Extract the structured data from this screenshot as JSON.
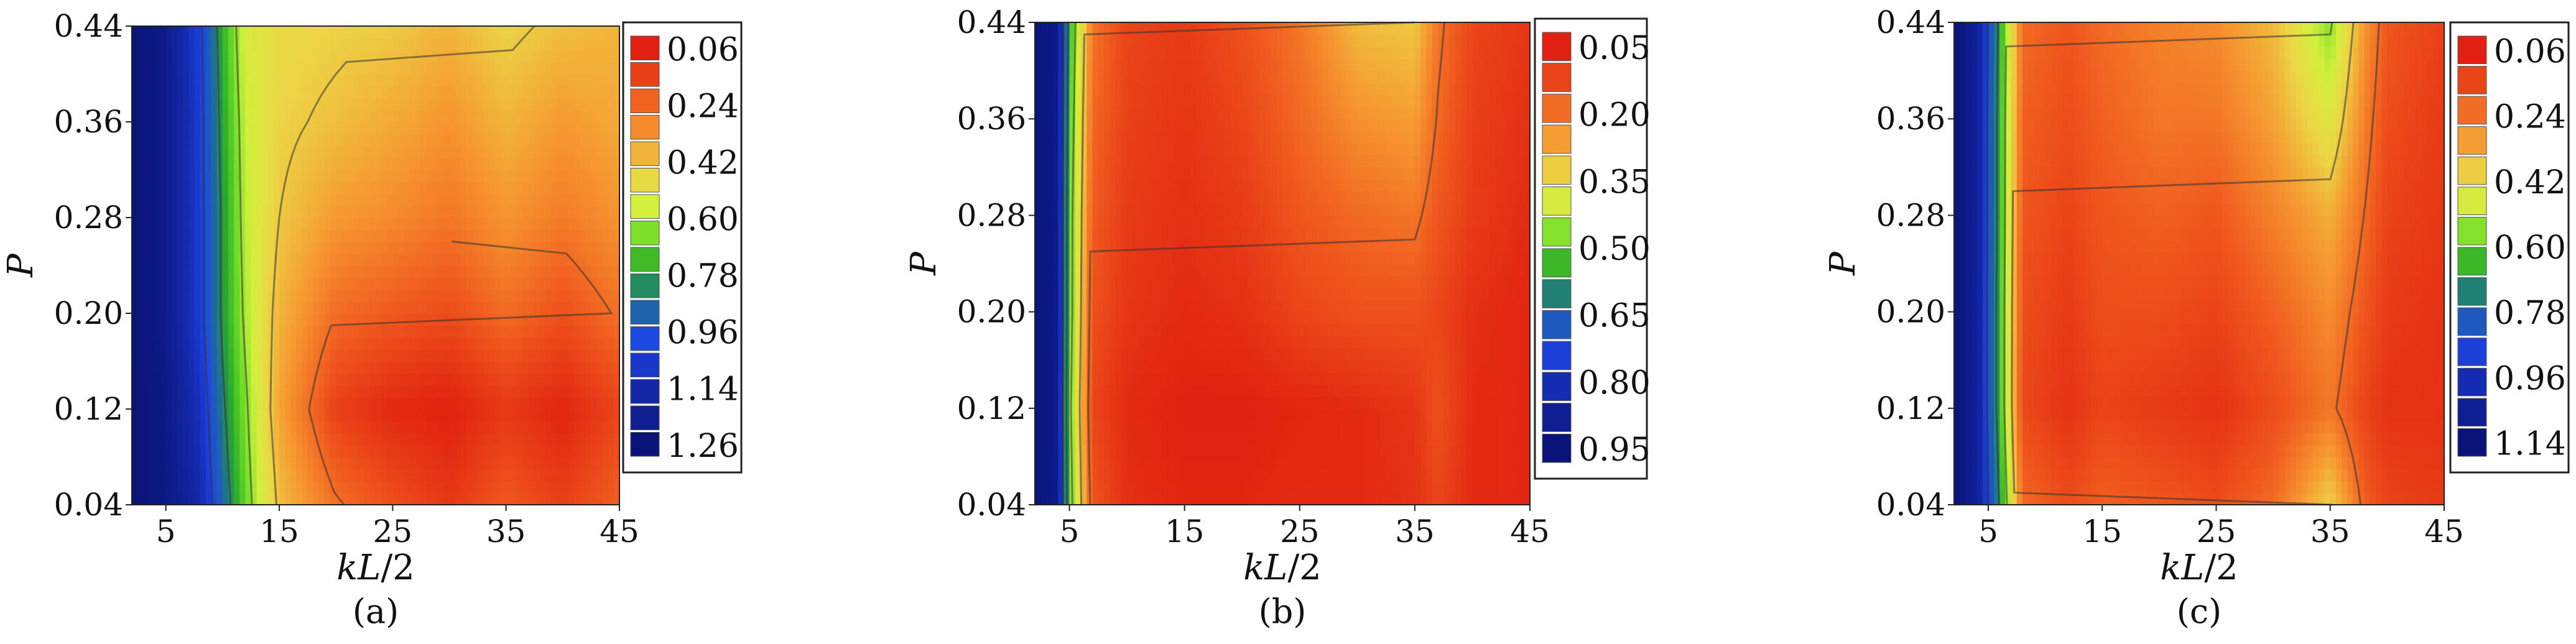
{
  "chart_data": [
    {
      "type": "heatmap",
      "caption": "(a)",
      "xlabel": "kL/2",
      "ylabel": "P",
      "xlim": [
        2,
        45
      ],
      "ylim": [
        0.04,
        0.44
      ],
      "xticks": [
        "5",
        "15",
        "25",
        "35",
        "45"
      ],
      "yticks": [
        "0.04",
        "0.12",
        "0.20",
        "0.28",
        "0.36",
        "0.44"
      ],
      "legend": [
        "0.06",
        "0.24",
        "0.42",
        "0.60",
        "0.78",
        "0.96",
        "1.14",
        "1.26"
      ],
      "value_range": [
        0.06,
        1.26
      ],
      "colors": {
        "high": "#0a1a8a",
        "low": "#e02010"
      },
      "x": [
        2,
        5,
        8,
        10,
        12,
        15,
        20,
        25,
        30,
        35,
        40,
        45
      ],
      "y": [
        0.04,
        0.12,
        0.2,
        0.28,
        0.36,
        0.44
      ],
      "z": [
        [
          1.26,
          1.22,
          1.1,
          0.85,
          0.65,
          0.4,
          0.25,
          0.18,
          0.12,
          0.2,
          0.14,
          0.22
        ],
        [
          1.26,
          1.22,
          1.05,
          0.8,
          0.62,
          0.35,
          0.14,
          0.08,
          0.06,
          0.12,
          0.07,
          0.15
        ],
        [
          1.26,
          1.2,
          1.0,
          0.76,
          0.58,
          0.38,
          0.24,
          0.2,
          0.17,
          0.24,
          0.18,
          0.25
        ],
        [
          1.26,
          1.2,
          1.0,
          0.76,
          0.56,
          0.42,
          0.33,
          0.3,
          0.26,
          0.32,
          0.27,
          0.32
        ],
        [
          1.26,
          1.2,
          1.0,
          0.74,
          0.55,
          0.44,
          0.4,
          0.36,
          0.32,
          0.38,
          0.33,
          0.36
        ],
        [
          1.26,
          1.2,
          0.98,
          0.72,
          0.52,
          0.46,
          0.44,
          0.42,
          0.38,
          0.44,
          0.4,
          0.38
        ]
      ]
    },
    {
      "type": "heatmap",
      "caption": "(b)",
      "xlabel": "kL/2",
      "ylabel": "P",
      "xlim": [
        2,
        45
      ],
      "ylim": [
        0.04,
        0.44
      ],
      "xticks": [
        "5",
        "15",
        "25",
        "35",
        "45"
      ],
      "yticks": [
        "0.04",
        "0.12",
        "0.20",
        "0.28",
        "0.36",
        "0.44"
      ],
      "legend": [
        "0.05",
        "0.20",
        "0.35",
        "0.50",
        "0.65",
        "0.80",
        "0.95"
      ],
      "value_range": [
        0.05,
        0.95
      ],
      "colors": {
        "high": "#0a1a8a",
        "low": "#e02010"
      },
      "x": [
        2,
        4,
        5,
        7,
        10,
        15,
        20,
        25,
        30,
        35,
        37,
        40,
        45
      ],
      "y": [
        0.04,
        0.12,
        0.2,
        0.28,
        0.36,
        0.44
      ],
      "z": [
        [
          0.95,
          0.9,
          0.5,
          0.15,
          0.08,
          0.06,
          0.06,
          0.07,
          0.07,
          0.08,
          0.12,
          0.07,
          0.06
        ],
        [
          0.95,
          0.9,
          0.48,
          0.12,
          0.07,
          0.05,
          0.05,
          0.06,
          0.07,
          0.09,
          0.14,
          0.07,
          0.06
        ],
        [
          0.95,
          0.9,
          0.5,
          0.14,
          0.09,
          0.07,
          0.08,
          0.12,
          0.14,
          0.14,
          0.12,
          0.08,
          0.06
        ],
        [
          0.95,
          0.9,
          0.5,
          0.16,
          0.1,
          0.08,
          0.1,
          0.15,
          0.18,
          0.2,
          0.15,
          0.1,
          0.07
        ],
        [
          0.95,
          0.9,
          0.52,
          0.18,
          0.11,
          0.09,
          0.12,
          0.18,
          0.24,
          0.26,
          0.18,
          0.11,
          0.08
        ],
        [
          0.95,
          0.9,
          0.55,
          0.2,
          0.12,
          0.1,
          0.14,
          0.2,
          0.3,
          0.32,
          0.2,
          0.12,
          0.09
        ]
      ]
    },
    {
      "type": "heatmap",
      "caption": "(c)",
      "xlabel": "kL/2",
      "ylabel": "P",
      "xlim": [
        2,
        45
      ],
      "ylim": [
        0.04,
        0.44
      ],
      "xticks": [
        "5",
        "15",
        "25",
        "35",
        "45"
      ],
      "yticks": [
        "0.04",
        "0.12",
        "0.20",
        "0.28",
        "0.36",
        "0.44"
      ],
      "legend": [
        "0.06",
        "0.24",
        "0.42",
        "0.60",
        "0.78",
        "0.96",
        "1.14"
      ],
      "value_range": [
        0.06,
        1.14
      ],
      "colors": {
        "high": "#0a1a8a",
        "low": "#e02010"
      },
      "x": [
        2,
        4,
        6,
        8,
        12,
        15,
        20,
        25,
        30,
        35,
        38,
        40,
        45
      ],
      "y": [
        0.04,
        0.12,
        0.2,
        0.28,
        0.36,
        0.44
      ],
      "z": [
        [
          1.14,
          1.05,
          0.7,
          0.22,
          0.16,
          0.2,
          0.18,
          0.16,
          0.22,
          0.4,
          0.2,
          0.14,
          0.12
        ],
        [
          1.14,
          1.05,
          0.65,
          0.15,
          0.1,
          0.14,
          0.12,
          0.1,
          0.16,
          0.24,
          0.14,
          0.1,
          0.1
        ],
        [
          1.14,
          1.05,
          0.65,
          0.16,
          0.12,
          0.16,
          0.16,
          0.14,
          0.2,
          0.28,
          0.18,
          0.12,
          0.1
        ],
        [
          1.14,
          1.05,
          0.66,
          0.18,
          0.14,
          0.18,
          0.2,
          0.18,
          0.26,
          0.34,
          0.22,
          0.14,
          0.11
        ],
        [
          1.14,
          1.05,
          0.66,
          0.2,
          0.16,
          0.2,
          0.24,
          0.24,
          0.32,
          0.46,
          0.26,
          0.16,
          0.12
        ],
        [
          1.14,
          1.05,
          0.68,
          0.22,
          0.18,
          0.22,
          0.26,
          0.28,
          0.36,
          0.56,
          0.3,
          0.18,
          0.13
        ]
      ]
    }
  ]
}
